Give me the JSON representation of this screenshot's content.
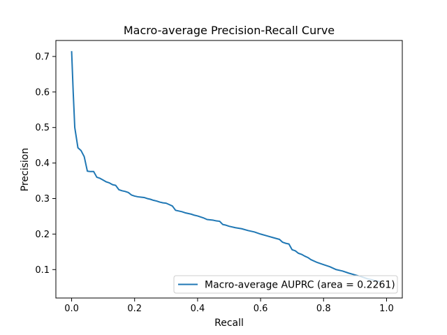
{
  "chart_data": {
    "type": "line",
    "title": "Macro-average Precision-Recall Curve",
    "xlabel": "Recall",
    "ylabel": "Precision",
    "xlim": [
      -0.05,
      1.05
    ],
    "ylim": [
      0.02,
      0.745
    ],
    "x_ticks": [
      0.0,
      0.2,
      0.4,
      0.6,
      0.8,
      1.0
    ],
    "x_tick_labels": [
      "0.0",
      "0.2",
      "0.4",
      "0.6",
      "0.8",
      "1.0"
    ],
    "y_ticks": [
      0.1,
      0.2,
      0.3,
      0.4,
      0.5,
      0.6,
      0.7
    ],
    "y_tick_labels": [
      "0.1",
      "0.2",
      "0.3",
      "0.4",
      "0.5",
      "0.6",
      "0.7"
    ],
    "grid": false,
    "legend_position": "lower right",
    "series": [
      {
        "name": "Macro-average AUPRC (area = 0.2261)",
        "color": "#1f77b4",
        "x": [
          0.0,
          0.005,
          0.01,
          0.02,
          0.03,
          0.04,
          0.05,
          0.06,
          0.07,
          0.08,
          0.09,
          0.1,
          0.11,
          0.12,
          0.13,
          0.14,
          0.15,
          0.16,
          0.17,
          0.18,
          0.19,
          0.2,
          0.21,
          0.22,
          0.23,
          0.24,
          0.25,
          0.26,
          0.27,
          0.28,
          0.29,
          0.3,
          0.31,
          0.32,
          0.33,
          0.34,
          0.35,
          0.36,
          0.37,
          0.38,
          0.39,
          0.4,
          0.41,
          0.42,
          0.43,
          0.44,
          0.45,
          0.46,
          0.47,
          0.48,
          0.49,
          0.5,
          0.52,
          0.54,
          0.56,
          0.58,
          0.6,
          0.62,
          0.64,
          0.66,
          0.67,
          0.68,
          0.69,
          0.7,
          0.71,
          0.72,
          0.73,
          0.74,
          0.75,
          0.76,
          0.78,
          0.8,
          0.82,
          0.84,
          0.86,
          0.88,
          0.9,
          0.92,
          0.94,
          0.96,
          0.98
        ],
        "y": [
          0.715,
          0.6,
          0.5,
          0.443,
          0.435,
          0.418,
          0.377,
          0.376,
          0.376,
          0.36,
          0.357,
          0.352,
          0.347,
          0.344,
          0.339,
          0.337,
          0.325,
          0.322,
          0.32,
          0.317,
          0.31,
          0.307,
          0.305,
          0.304,
          0.303,
          0.3,
          0.298,
          0.295,
          0.293,
          0.29,
          0.288,
          0.287,
          0.283,
          0.279,
          0.267,
          0.265,
          0.263,
          0.26,
          0.258,
          0.256,
          0.253,
          0.251,
          0.248,
          0.245,
          0.241,
          0.24,
          0.239,
          0.237,
          0.236,
          0.227,
          0.225,
          0.222,
          0.218,
          0.215,
          0.21,
          0.206,
          0.2,
          0.195,
          0.19,
          0.185,
          0.177,
          0.174,
          0.172,
          0.156,
          0.153,
          0.146,
          0.143,
          0.138,
          0.134,
          0.128,
          0.12,
          0.114,
          0.108,
          0.1,
          0.096,
          0.09,
          0.085,
          0.08,
          0.074,
          0.07,
          0.066
        ]
      }
    ]
  }
}
